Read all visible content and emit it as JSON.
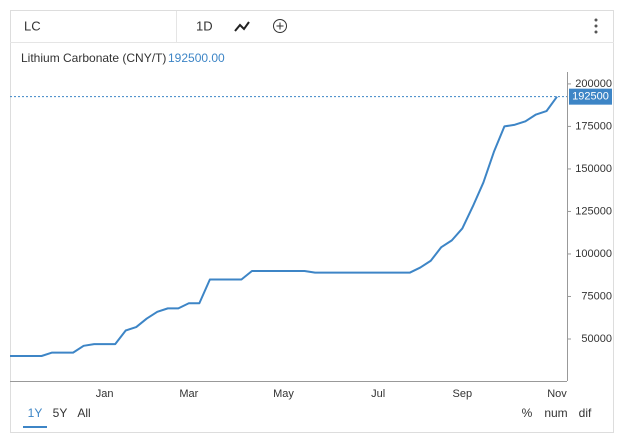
{
  "toolbar": {
    "symbol": "LC",
    "interval": "1D"
  },
  "range_buttons": [
    "1Y",
    "5Y",
    "All"
  ],
  "scale_buttons": [
    "%",
    "num",
    "dif"
  ],
  "chart_data": {
    "type": "line",
    "title": "Lithium Carbonate (CNY/T)",
    "price_label": "192500.00",
    "color": "#3d85c6",
    "categories": [
      null,
      null,
      null,
      null,
      null,
      null,
      null,
      null,
      null,
      "Jan",
      null,
      null,
      null,
      null,
      null,
      null,
      null,
      "Mar",
      null,
      null,
      null,
      null,
      null,
      null,
      null,
      null,
      "May",
      null,
      null,
      null,
      null,
      null,
      null,
      null,
      null,
      "Jul",
      null,
      null,
      null,
      null,
      null,
      null,
      null,
      "Sep",
      null,
      null,
      null,
      null,
      null,
      null,
      null,
      null,
      "Nov"
    ],
    "values": [
      40000,
      40000,
      40000,
      40000,
      42000,
      42000,
      42000,
      46000,
      47000,
      47000,
      47000,
      55000,
      57000,
      62000,
      66000,
      68000,
      68000,
      71000,
      71000,
      85000,
      85000,
      85000,
      85000,
      90000,
      90000,
      90000,
      90000,
      90000,
      90000,
      89000,
      89000,
      89000,
      89000,
      89000,
      89000,
      89000,
      89000,
      89000,
      89000,
      92000,
      96000,
      104000,
      108000,
      115000,
      128000,
      142000,
      160000,
      175000,
      176000,
      178000,
      182000,
      184000,
      192500
    ],
    "ylim": [
      25300,
      207000
    ],
    "yticks": [
      50000,
      75000,
      100000,
      125000,
      150000,
      175000,
      200000
    ]
  }
}
